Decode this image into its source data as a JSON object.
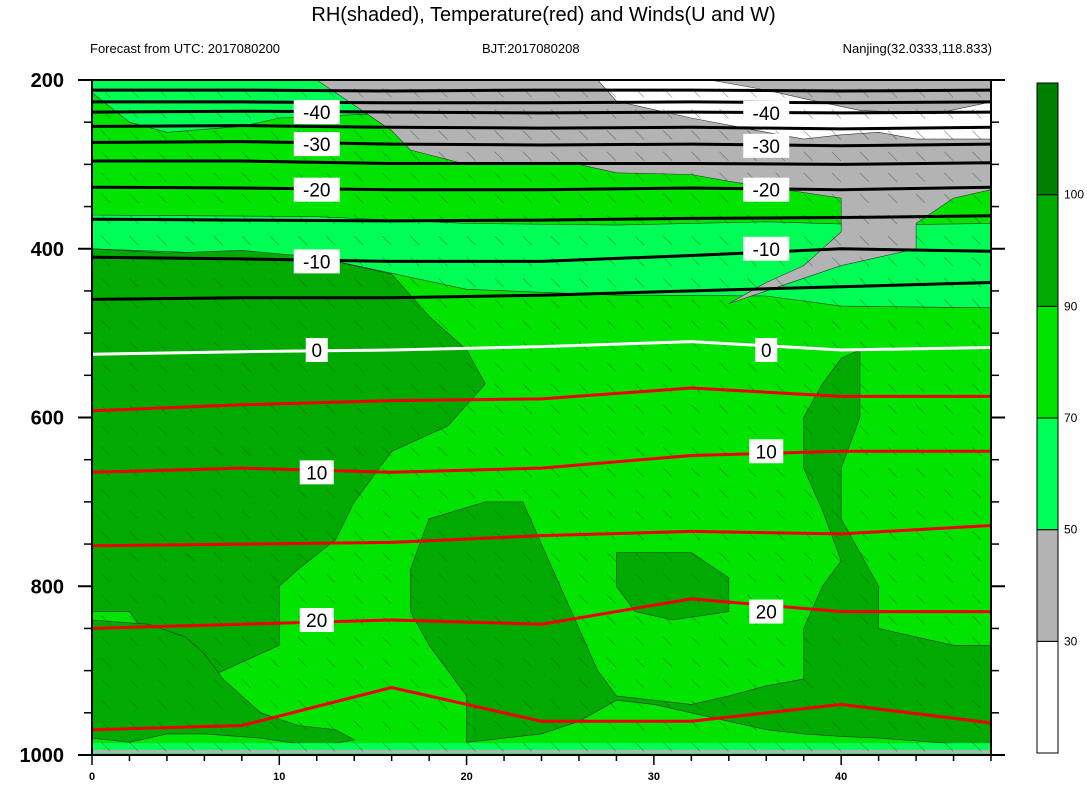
{
  "title": "RH(shaded), Temperature(red) and Winds(U and W)",
  "subtitle_left": "Forecast from UTC: 2017080200",
  "subtitle_center": "BJT:2017080208",
  "subtitle_right": "Nanjing(32.0333,118.833)",
  "colors": {
    "rh_lt30": "#ffffff",
    "rh_30_50": "#b3b3b3",
    "rh_50_70": "#00ff55",
    "rh_70_90": "#00e400",
    "rh_90_100": "#00aa00",
    "rh_gt100": "#008000",
    "temp_warm": "#ee0000",
    "temp_zero": "#ffffff",
    "temp_cold": "#000000"
  },
  "chart_data": {
    "type": "heatmap",
    "xlim": [
      0,
      48
    ],
    "ylim": [
      1000,
      200
    ],
    "x_ticks": [
      0,
      10,
      20,
      30,
      40
    ],
    "y_ticks": [
      200,
      400,
      600,
      800,
      1000
    ],
    "colorbar": {
      "levels": [
        30,
        50,
        70,
        90,
        100
      ],
      "colors": [
        "#ffffff",
        "#b3b3b3",
        "#00ff55",
        "#00e400",
        "#00aa00",
        "#008000"
      ]
    },
    "temperature_contours": [
      {
        "level": -50,
        "label": "",
        "pressure": [
          212,
          212,
          213,
          212,
          212,
          213,
          212
        ]
      },
      {
        "level": -45,
        "label": "",
        "pressure": [
          226,
          226,
          227,
          227,
          226,
          227,
          226
        ]
      },
      {
        "level": -40,
        "label": "-40",
        "pressure": [
          238,
          237,
          238,
          239,
          238,
          239,
          238
        ]
      },
      {
        "level": -35,
        "label": "",
        "pressure": [
          255,
          254,
          256,
          257,
          256,
          258,
          256
        ]
      },
      {
        "level": -30,
        "label": "-30",
        "pressure": [
          274,
          273,
          276,
          277,
          276,
          278,
          276
        ]
      },
      {
        "level": -25,
        "label": "",
        "pressure": [
          296,
          296,
          299,
          299,
          299,
          300,
          298
        ]
      },
      {
        "level": -20,
        "label": "-20",
        "pressure": [
          327,
          328,
          330,
          330,
          328,
          330,
          327
        ]
      },
      {
        "level": -15,
        "label": "",
        "pressure": [
          365,
          366,
          367,
          366,
          364,
          363,
          361
        ]
      },
      {
        "level": -10,
        "label": "-10",
        "pressure": [
          410,
          412,
          415,
          415,
          408,
          400,
          403
        ]
      },
      {
        "level": -5,
        "label": "",
        "pressure": [
          460,
          458,
          458,
          455,
          450,
          445,
          440
        ]
      },
      {
        "level": 0,
        "label": "0",
        "pressure": [
          525,
          522,
          520,
          516,
          510,
          520,
          517
        ]
      },
      {
        "level": 5,
        "label": "",
        "pressure": [
          592,
          585,
          580,
          578,
          565,
          575,
          575
        ]
      },
      {
        "level": 10,
        "label": "10",
        "pressure": [
          665,
          660,
          665,
          660,
          645,
          640,
          640
        ]
      },
      {
        "level": 15,
        "label": "",
        "pressure": [
          752,
          750,
          748,
          740,
          735,
          738,
          728
        ]
      },
      {
        "level": 20,
        "label": "20",
        "pressure": [
          850,
          845,
          840,
          845,
          815,
          830,
          830
        ]
      },
      {
        "level": 25,
        "label": "",
        "pressure": [
          970,
          965,
          920,
          960,
          960,
          940,
          962
        ]
      }
    ],
    "temperature_contour_x": [
      0,
      8,
      16,
      24,
      32,
      40,
      48
    ]
  }
}
